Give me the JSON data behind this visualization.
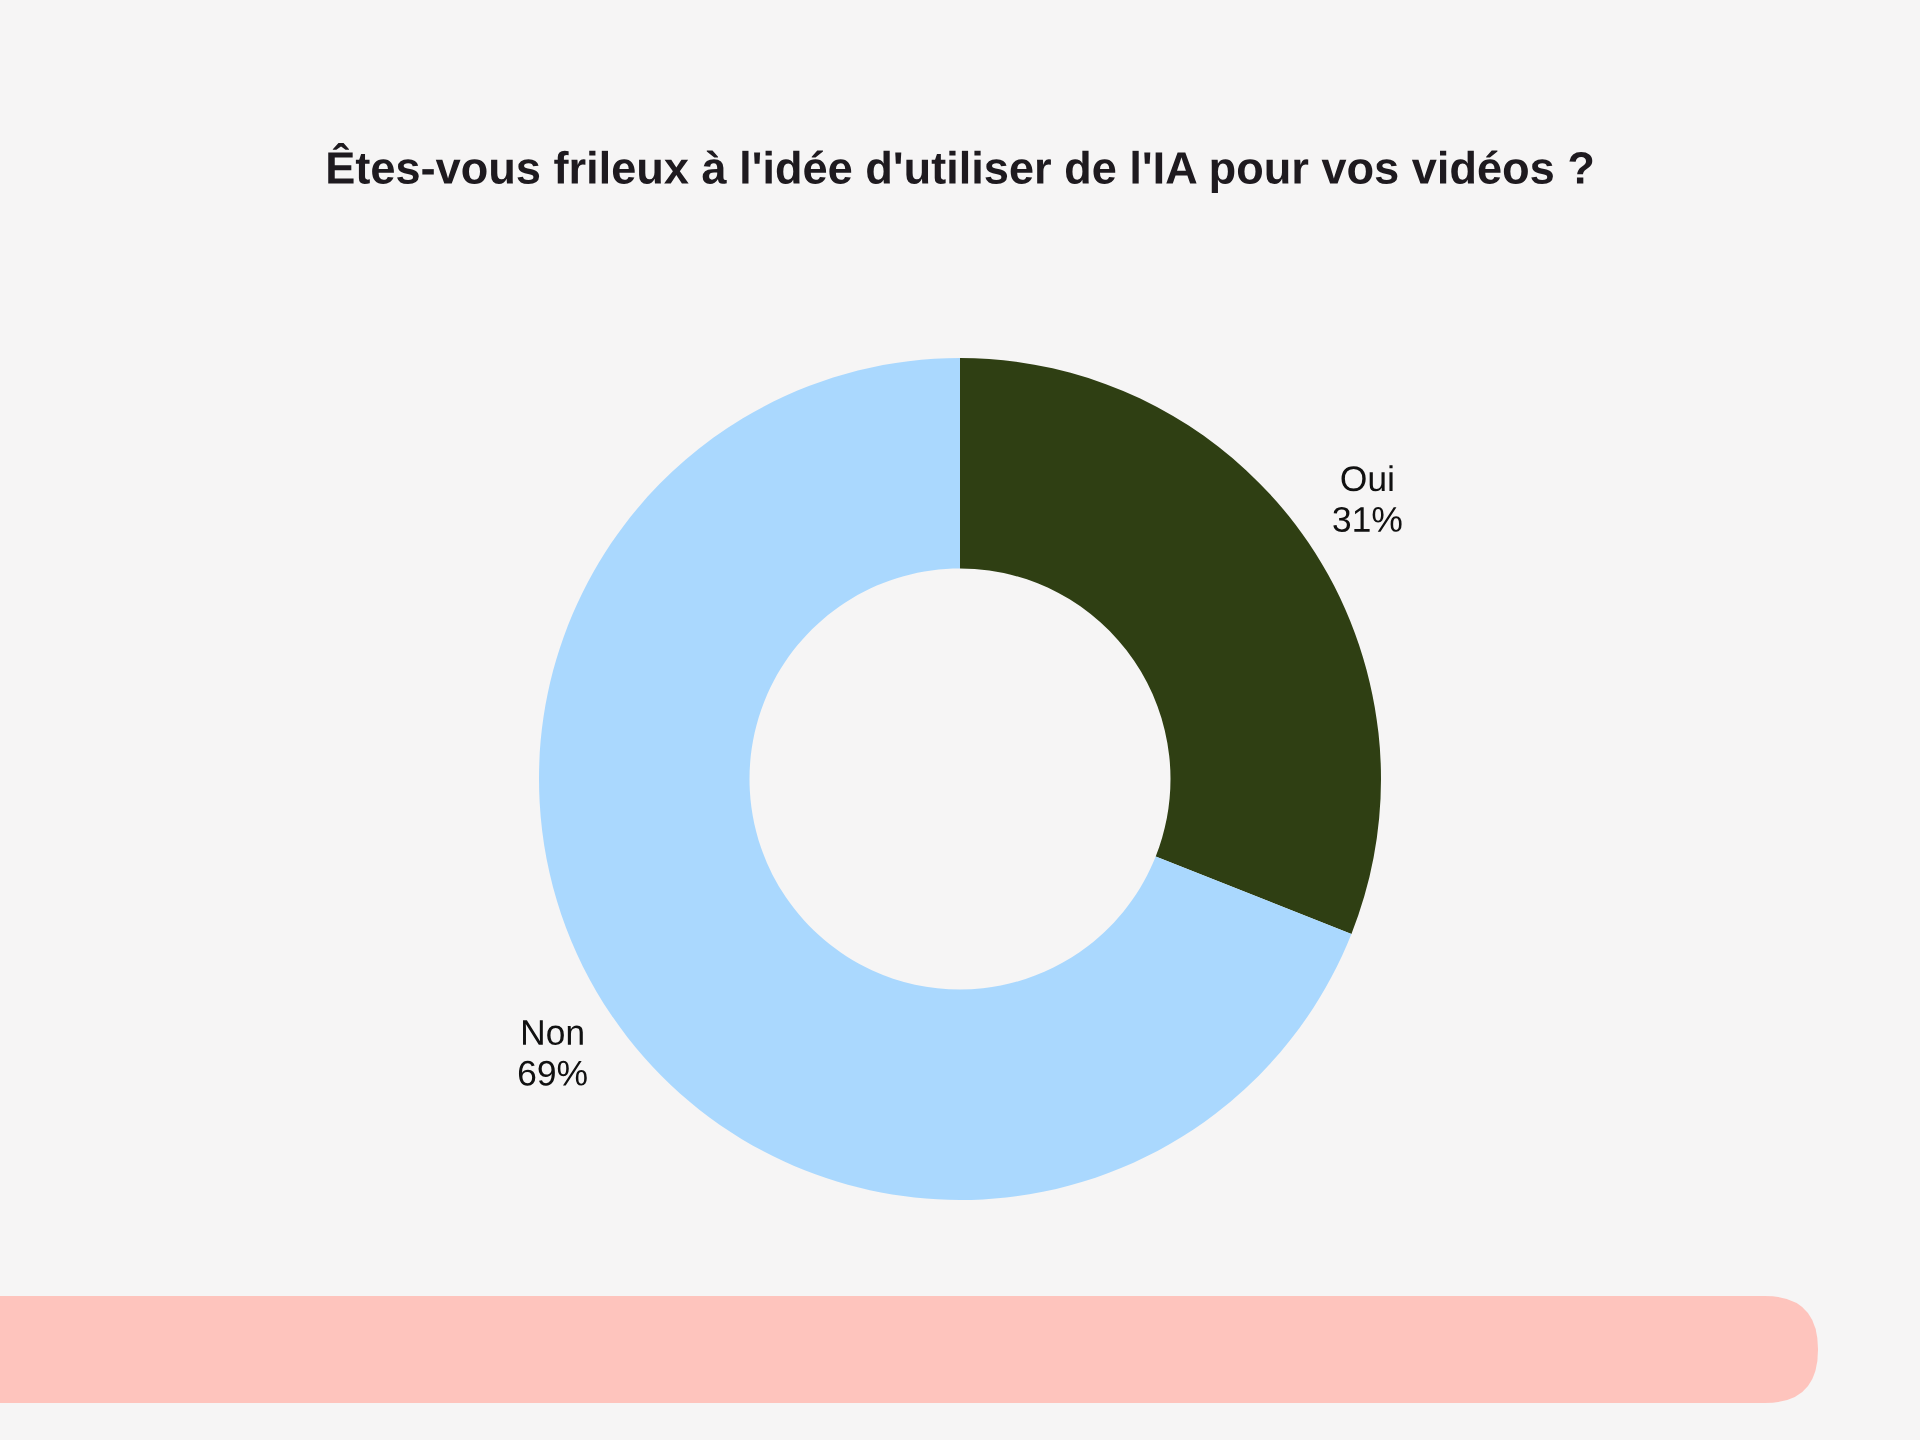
{
  "chart_data": {
    "type": "donut",
    "title": "Êtes-vous frileux à l'idée d'utiliser de l'IA pour vos vidéos ?",
    "categories": [
      "Oui",
      "Non"
    ],
    "values": [
      31,
      69
    ],
    "colors": [
      "#2f3f13",
      "#aad8fe"
    ],
    "value_labels": [
      "31%",
      "69%"
    ],
    "legend": false
  }
}
